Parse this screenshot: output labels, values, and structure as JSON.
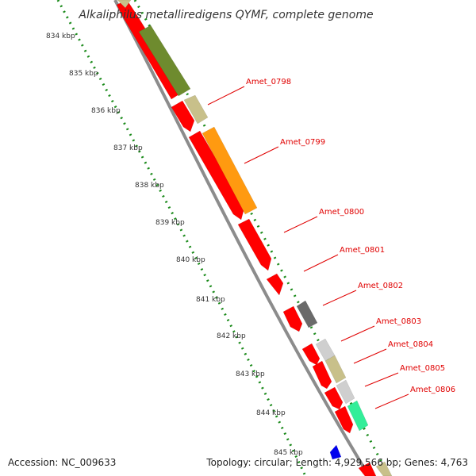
{
  "title": "Alkaliphilus metalliredigens QYMF, complete genome",
  "footer": {
    "accession": "Accession: NC_009633",
    "info": "Topology: circular; Length: 4,929,566 bp; Genes: 4,763"
  },
  "colors": {
    "cds_forward": "#ff0000",
    "cds_reverse": "#ff0000",
    "backbone": "#8c8c8c",
    "scale_dots": "#1a8a1a",
    "label": "#e00000",
    "cog_olive": "#6e8b2e",
    "cog_khaki": "#c8c08a",
    "cog_orange": "#ff9a10",
    "cog_darkgray": "#6a6a6a",
    "cog_lightgray": "#cfcfcf",
    "cog_mint": "#33ee99",
    "cog_blue": "#0000ee"
  },
  "scale": {
    "unit": "kbp",
    "ticks": [
      "834 kbp",
      "835 kbp",
      "836 kbp",
      "837 kbp",
      "838 kbp",
      "839 kbp",
      "840 kbp",
      "841 kbp",
      "842 kbp",
      "843 kbp",
      "844 kbp",
      "845 kbp"
    ]
  },
  "gene_labels": [
    "Amet_0798",
    "Amet_0799",
    "Amet_0800",
    "Amet_0801",
    "Amet_0802",
    "Amet_0803",
    "Amet_0804",
    "Amet_0805",
    "Amet_0806"
  ]
}
